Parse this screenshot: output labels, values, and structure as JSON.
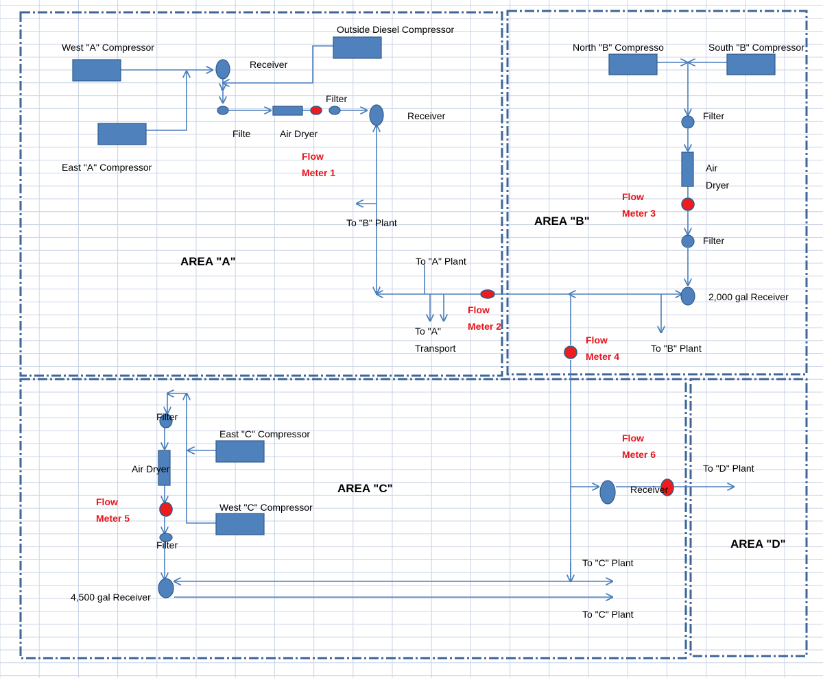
{
  "areas": {
    "a": "AREA \"A\"",
    "b": "AREA \"B\"",
    "c": "AREA \"C\"",
    "d": "AREA \"D\""
  },
  "equipment": {
    "west_a_compressor": "West \"A\" Compressor",
    "east_a_compressor": "East \"A\" Compressor",
    "outside_diesel_compressor": "Outside Diesel Compressor",
    "receiver_a1": "Receiver",
    "receiver_a2": "Receiver",
    "filter_a1": "Filte",
    "filter_a2": "Filter",
    "air_dryer_a": "Air Dryer",
    "north_b_compressor": "North  \"B\" Compresso",
    "south_b_compressor": "South  \"B\" Compressor",
    "filter_b1": "Filter",
    "air_dryer_b_line1": "Air",
    "air_dryer_b_line2": "Dryer",
    "filter_b2": "Filter",
    "receiver_b": "2,000 gal Receiver",
    "east_c_compressor": "East \"C\" Compressor",
    "west_c_compressor": "West \"C\" Compressor",
    "filter_c1": "Filter",
    "air_dryer_c": "Air Dryer",
    "filter_c2": "Filter",
    "receiver_c": "4,500 gal Receiver",
    "receiver_d": "Receiver"
  },
  "destinations": {
    "to_b_plant_1": "To \"B\" Plant",
    "to_a_plant": "To \"A\" Plant",
    "to_a_transport_line1": "To \"A\"",
    "to_a_transport_line2": "Transport",
    "to_b_plant_2": "To \"B\" Plant",
    "to_c_plant_1": "To \"C\" Plant",
    "to_c_plant_2": "To \"C\" Plant",
    "to_d_plant": "To \"D\" Plant"
  },
  "flow_meters": {
    "m1_line1": "Flow",
    "m1_line2": "Meter 1",
    "m2_line1": "Flow",
    "m2_line2": "Meter 2",
    "m3_line1": "Flow",
    "m3_line2": "Meter 3",
    "m4_line1": "Flow",
    "m4_line2": "Meter 4",
    "m5_line1": "Flow",
    "m5_line2": "Meter 5",
    "m6_line1": "Flow",
    "m6_line2": "Meter 6"
  },
  "colors": {
    "equipment_fill": "#4f81bd",
    "pipe": "#4a7ebb",
    "flow_meter": "#ee1c1c",
    "flow_meter_label": "#e8141b",
    "area_border": "#3e6596",
    "grid": "#c9d3e6"
  }
}
